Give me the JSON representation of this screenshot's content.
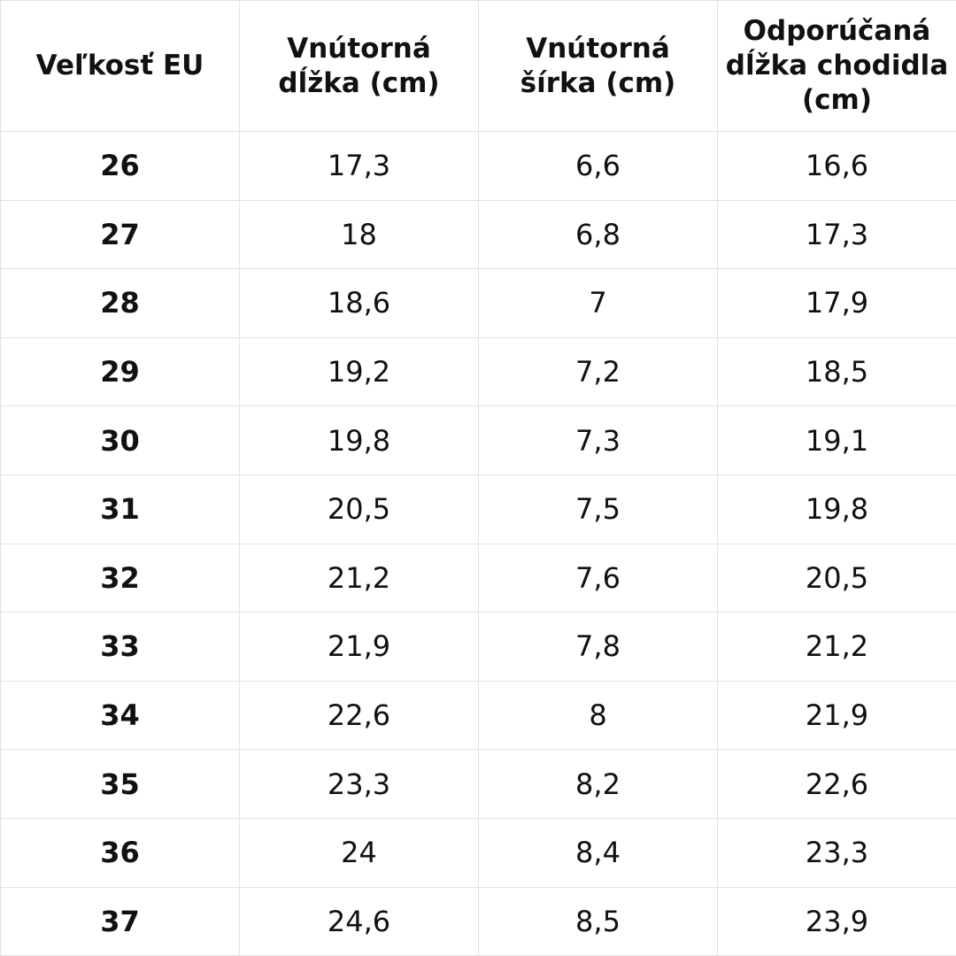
{
  "headers": {
    "size": "Veľkosť EU",
    "inner_length": "Vnútorná dĺžka (cm)",
    "inner_width": "Vnútorná šírka (cm)",
    "foot_length": "Odporúčaná dĺžka chodidla (cm)"
  },
  "rows": [
    {
      "size": "26",
      "inner_length": "17,3",
      "inner_width": "6,6",
      "foot_length": "16,6"
    },
    {
      "size": "27",
      "inner_length": "18",
      "inner_width": "6,8",
      "foot_length": "17,3"
    },
    {
      "size": "28",
      "inner_length": "18,6",
      "inner_width": "7",
      "foot_length": "17,9"
    },
    {
      "size": "29",
      "inner_length": "19,2",
      "inner_width": "7,2",
      "foot_length": "18,5"
    },
    {
      "size": "30",
      "inner_length": "19,8",
      "inner_width": "7,3",
      "foot_length": "19,1"
    },
    {
      "size": "31",
      "inner_length": "20,5",
      "inner_width": "7,5",
      "foot_length": "19,8"
    },
    {
      "size": "32",
      "inner_length": "21,2",
      "inner_width": "7,6",
      "foot_length": "20,5"
    },
    {
      "size": "33",
      "inner_length": "21,9",
      "inner_width": "7,8",
      "foot_length": "21,2"
    },
    {
      "size": "34",
      "inner_length": "22,6",
      "inner_width": "8",
      "foot_length": "21,9"
    },
    {
      "size": "35",
      "inner_length": "23,3",
      "inner_width": "8,2",
      "foot_length": "22,6"
    },
    {
      "size": "36",
      "inner_length": "24",
      "inner_width": "8,4",
      "foot_length": "23,3"
    },
    {
      "size": "37",
      "inner_length": "24,6",
      "inner_width": "8,5",
      "foot_length": "23,9"
    }
  ],
  "colors": {
    "grid_line": "#e2e2e2",
    "text": "#111111",
    "background": "#ffffff"
  }
}
